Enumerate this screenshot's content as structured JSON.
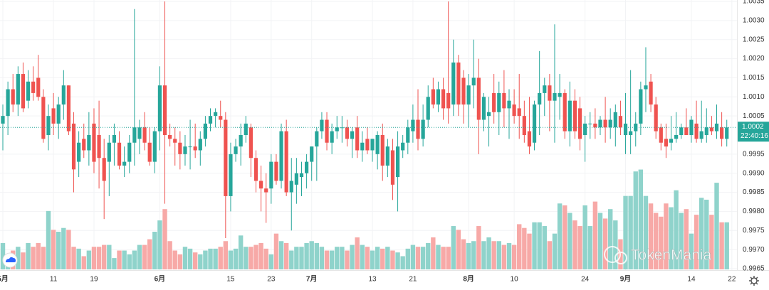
{
  "chart_data": {
    "type": "candlestick",
    "up_color": "#26a69a",
    "down_color": "#ef5350",
    "volume_up_color": "#8fd3cb",
    "volume_down_color": "#f7a9a7",
    "grid": true,
    "ylim": [
      0.9965,
      1.0035
    ],
    "yticks": [
      0.9965,
      {
        "value": 0.997,
        "label": "0.9970"
      },
      0.9975,
      {
        "value": 0.998,
        "label": "0.9980"
      },
      0.9985,
      {
        "value": 0.999,
        "label": "0.9990"
      },
      0.9995,
      1.0005,
      {
        "value": 1.001,
        "label": "1.0010"
      },
      1.0015,
      {
        "value": 1.002,
        "label": "1.0020"
      },
      1.0025,
      {
        "value": 1.003,
        "label": "1.0030"
      },
      1.0035
    ],
    "last_price": 1.0002,
    "countdown": "22:40:16",
    "watermark": "TokenMania",
    "categories": [
      "5月",
      null,
      null,
      null,
      null,
      null,
      null,
      null,
      null,
      null,
      "11",
      null,
      null,
      null,
      null,
      null,
      null,
      null,
      "19",
      null,
      null,
      null,
      null,
      null,
      null,
      null,
      null,
      null,
      null,
      null,
      null,
      "6月",
      null,
      null,
      null,
      null,
      null,
      null,
      null,
      null,
      null,
      null,
      null,
      null,
      null,
      "15",
      null,
      null,
      null,
      null,
      null,
      null,
      null,
      "23",
      null,
      null,
      null,
      null,
      null,
      null,
      null,
      "7月",
      null,
      null,
      null,
      null,
      null,
      null,
      null,
      null,
      null,
      null,
      null,
      "13",
      null,
      null,
      null,
      null,
      null,
      null,
      null,
      "21",
      null,
      null,
      null,
      null,
      null,
      null,
      null,
      null,
      null,
      null,
      "8月",
      null,
      null,
      null,
      null,
      null,
      null,
      null,
      null,
      "10",
      null,
      null,
      null,
      null,
      null,
      null,
      null,
      null,
      null,
      null,
      null,
      null,
      null,
      "24",
      null,
      null,
      null,
      null,
      null,
      null,
      null,
      "9月",
      null,
      null,
      null,
      null,
      null,
      null,
      null,
      null,
      null,
      null,
      null,
      null,
      "14",
      null,
      null,
      null,
      null,
      null,
      null,
      null,
      "22"
    ],
    "open": [
      1.0003,
      1.0005,
      1.0012,
      1.0008,
      1.0016,
      1.0009,
      1.0014,
      1.0015,
      1.001,
      1,
      1.0007,
      1.0003,
      1.0008,
      1.0013,
      1.0003,
      0.9993,
      0.9999,
      0.9996,
      1.0003,
      1,
      0.9994,
      0.9993,
      0.9998,
      0.9998,
      0.9992,
      0.9993,
      0.9998,
      0.9999,
      1.0002,
      0.9998,
      0.9993,
      1.0001,
      1.0013,
      1,
      0.9999,
      0.9998,
      0.9995,
      0.9997,
      0.9997,
      0.9996,
      0.9999,
      1.0003,
      1.0005,
      1.0005,
      1.0004,
      0.9984,
      0.9995,
      0.9997,
      1,
      1.0002,
      0.9994,
      0.9988,
      0.9986,
      0.9986,
      0.9993,
      0.9988,
      1.0001,
      0.9985,
      0.9987,
      0.9989,
      0.999,
      0.9993,
      0.9997,
      1.0001,
      1.0004,
      0.9998,
      1.0001,
      1.0002,
      1.0002,
      0.9999,
      1.0002,
      0.9996,
      0.9999,
      0.9996,
      0.9995,
      1,
      0.9992,
      0.9996,
      0.9989,
      0.9996,
      0.9998,
      1.0001,
      1.0004,
      0.9999,
      1.0004,
      1.0012,
      1.0008,
      1.0012,
      1.0011,
      1.0008,
      1.0019,
      1.0015,
      1.0008,
      1.0013,
      1.0015,
      1.0004,
      1.0005,
      1.0011,
      1.0006,
      1.0011,
      1.0007,
      1.0008,
      1.0007,
      1.0005,
      1.0001,
      0.9998,
      1.0008,
      1.0011,
      1.0013,
      1.0009,
      1.001,
      1.0011,
      1.0001,
      1.0009,
      1.0007,
      1,
      1.0003,
      1.0003,
      1.0002,
      1.0004,
      1.0002,
      1.0002,
      1.0005,
      1,
      1,
      1.0001,
      1.0003,
      1.0012,
      1.0014,
      1.0008,
      1.0002,
      0.9999,
      0.9998,
      0.9999,
      1,
      1.0002,
      1,
      1.0003,
      0.9999,
      1,
      1.0002,
      1.0001,
      1.0002,
      0.9999,
      null
    ],
    "high": [
      1.0008,
      1.0014,
      1.0016,
      1.0018,
      1.0019,
      1.0017,
      1.0018,
      1.0021,
      1.0012,
      1.0008,
      1.0011,
      1.001,
      1.0017,
      1.0013,
      1.0006,
      1.0001,
      1.0003,
      1.0006,
      1.0007,
      1.0009,
      0.9999,
      1,
      1.0003,
      1.0001,
      0.9997,
      1,
      1.0033,
      1.0004,
      1.0006,
      1.0002,
      1.0002,
      1.0018,
      1.0035,
      1.0003,
      1.0002,
      1.0001,
      1,
      1.0004,
      1.0003,
      1.0001,
      1.0005,
      1.0007,
      1.0007,
      1.0009,
      1.0006,
      0.9998,
      0.9999,
      1.0003,
      1.0005,
      1.0003,
      0.9996,
      0.9992,
      0.999,
      0.9995,
      0.9995,
      1.0003,
      1.0004,
      0.9994,
      0.9994,
      0.9993,
      0.9995,
      0.9997,
      1.0002,
      1.0006,
      1.0006,
      1.0003,
      1.0005,
      1.0005,
      1.0004,
      1.0002,
      1.0005,
      1.0001,
      1.0002,
      0.9999,
      1.0001,
      1.0003,
      0.9999,
      0.9999,
      1.0001,
      1,
      1.0004,
      1.0008,
      1.0012,
      1.0008,
      1.0013,
      1.0015,
      1.0014,
      1.0015,
      1.0035,
      1.0025,
      1.0021,
      1.0017,
      1.0016,
      1.0025,
      1.002,
      1.0011,
      1.001,
      1.0016,
      1.0014,
      1.0017,
      1.0012,
      1.0012,
      1.0016,
      1.0009,
      1.001,
      1.0009,
      1.0022,
      1.0015,
      1.0016,
      1.0029,
      1.0016,
      1.0012,
      1.0014,
      1.0012,
      1.001,
      1.0005,
      1.0006,
      1.0007,
      1.0005,
      1.001,
      1.0007,
      1.0008,
      1.0009,
      1.0011,
      1.0017,
      1.0006,
      1.0014,
      1.0023,
      1.0016,
      1.001,
      1.0003,
      1.0003,
      1.0005,
      1.0006,
      1.0003,
      1.0007,
      1.0005,
      1.0009,
      1.0009,
      1.0007,
      1.0005,
      1.0008,
      1.0006,
      1.0004,
      null
    ],
    "low": [
      0.9996,
      1,
      1.0006,
      1.0005,
      1.0006,
      1.0007,
      1.0009,
      1.0009,
      0.9998,
      0.9996,
      1,
      0.9999,
      1.0004,
      1,
      0.9985,
      0.9989,
      0.9994,
      0.9992,
      0.999,
      0.9986,
      0.9978,
      0.9984,
      0.9992,
      0.9991,
      0.9989,
      0.999,
      0.9992,
      0.9995,
      0.9996,
      0.9992,
      0.999,
      0.9996,
      0.9982,
      0.9997,
      0.9992,
      0.9991,
      0.9992,
      0.9991,
      0.9994,
      0.9992,
      0.9997,
      1.0001,
      1.0002,
      1.0002,
      0.9973,
      0.998,
      0.9993,
      0.9992,
      0.9998,
      0.9989,
      0.9985,
      0.998,
      0.9977,
      0.9982,
      0.9987,
      0.9986,
      0.9984,
      0.9975,
      0.9982,
      0.9984,
      0.9986,
      0.9988,
      0.9988,
      0.9999,
      0.9996,
      0.9995,
      0.9999,
      0.9998,
      0.9997,
      0.9994,
      0.9994,
      0.9993,
      0.9995,
      0.9993,
      0.9991,
      0.9988,
      0.9989,
      0.9983,
      0.998,
      0.9994,
      0.9995,
      0.9998,
      0.9996,
      0.9997,
      1.0002,
      1.0007,
      1.0006,
      1.0004,
      1.0003,
      1.0005,
      1.0005,
      1.0003,
      1.0002,
      1.0007,
      0.9995,
      1.0001,
      0.9997,
      1.0003,
      1,
      1.0002,
      0.9999,
      1.0003,
      0.9999,
      0.9998,
      0.9995,
      0.9996,
      1,
      1.0005,
      1.0001,
      0.9998,
      1.0004,
      0.9999,
      0.9997,
      0.9999,
      0.9996,
      0.9993,
      0.9999,
      0.9999,
      1,
      0.9998,
      0.9999,
      0.9997,
      1,
      0.9995,
      0.9995,
      0.9997,
      1,
      1.0006,
      1.0006,
      0.9999,
      0.9996,
      0.9994,
      0.9996,
      0.9998,
      0.9999,
      1,
      0.9998,
      0.9998,
      0.9998,
      0.9998,
      1,
      0.9999,
      0.9997,
      0.9997,
      null
    ],
    "close": [
      1.0005,
      1.0012,
      1.0008,
      1.0016,
      1.0007,
      1.0014,
      1.0011,
      1.001,
      0.9999,
      1.0005,
      1.0003,
      1.0008,
      1.0013,
      1.0001,
      0.9991,
      0.9998,
      0.9996,
      1,
      0.9993,
      0.9994,
      0.9988,
      0.9998,
      1,
      0.9992,
      0.9993,
      0.9998,
      1.0002,
      1.0002,
      0.9998,
      0.9993,
      1.0001,
      1.0013,
      1,
      0.9999,
      0.9998,
      0.9995,
      0.9997,
      0.9997,
      0.9996,
      0.9999,
      1.0003,
      1.0005,
      1.0006,
      1.0004,
      0.9984,
      0.9995,
      0.9997,
      1,
      1.0003,
      0.9994,
      0.9988,
      0.9986,
      0.9985,
      0.9993,
      0.9988,
      1.0001,
      0.9985,
      0.9988,
      0.999,
      0.999,
      0.9993,
      0.9997,
      1.0001,
      1.0004,
      0.9998,
      1.0001,
      1.0002,
      1.0002,
      0.9999,
      1.0001,
      0.9996,
      0.9998,
      0.9996,
      0.9999,
      1,
      0.9992,
      0.9997,
      0.9987,
      0.9997,
      0.9998,
      1.0002,
      1.0004,
      0.9999,
      1.0004,
      1.001,
      1.0008,
      1.0012,
      1.0007,
      1.0007,
      1.0019,
      1.0008,
      1.0008,
      1.0013,
      1.0015,
      1.0004,
      1.001,
      1.0006,
      1.0006,
      1.0011,
      1.0007,
      1.0009,
      1.0005,
      1.0005,
      1,
      0.9997,
      1.0008,
      1.0011,
      1.0013,
      1.0009,
      1.0011,
      1.0011,
      1.0001,
      1.0009,
      1.0001,
      0.9999,
      1.0003,
      1.0003,
      1.0002,
      1.0004,
      1.0002,
      1.0004,
      1.0006,
      1.0002,
      1.0003,
      1.0001,
      1.0003,
      1.0012,
      1.0013,
      1.0008,
      1.0001,
      0.9998,
      0.9997,
      0.9999,
      1,
      1.0002,
      1,
      1.0004,
      0.9999,
      1.0001,
      1.0002,
      1.0001,
      1.0003,
      0.9999,
      1.0002,
      null
    ],
    "volume": [
      14,
      8,
      10,
      12,
      9,
      14,
      12,
      14,
      12,
      31,
      21,
      20,
      22,
      21,
      12,
      11,
      7,
      10,
      12,
      12,
      13,
      13,
      6,
      10,
      10,
      8,
      10,
      13,
      13,
      16,
      20,
      26,
      32,
      15,
      10,
      8,
      12,
      11,
      9,
      8,
      10,
      11,
      11,
      12,
      15,
      10,
      11,
      18,
      12,
      12,
      13,
      14,
      11,
      8,
      19,
      15,
      14,
      10,
      12,
      12,
      14,
      15,
      14,
      12,
      10,
      10,
      12,
      12,
      10,
      13,
      17,
      13,
      12,
      10,
      12,
      11,
      12,
      10,
      9,
      7,
      11,
      13,
      12,
      12,
      14,
      17,
      13,
      12,
      12,
      23,
      21,
      16,
      14,
      15,
      23,
      15,
      17,
      15,
      15,
      13,
      14,
      13,
      24,
      22,
      19,
      25,
      25,
      23,
      15,
      19,
      35,
      34,
      30,
      26,
      23,
      34,
      23,
      36,
      30,
      27,
      32,
      26,
      16,
      39,
      39,
      52,
      53,
      39,
      35,
      30,
      28,
      35,
      33,
      42,
      30,
      32,
      19,
      29,
      38,
      37,
      29,
      46,
      25,
      25,
      null
    ]
  }
}
